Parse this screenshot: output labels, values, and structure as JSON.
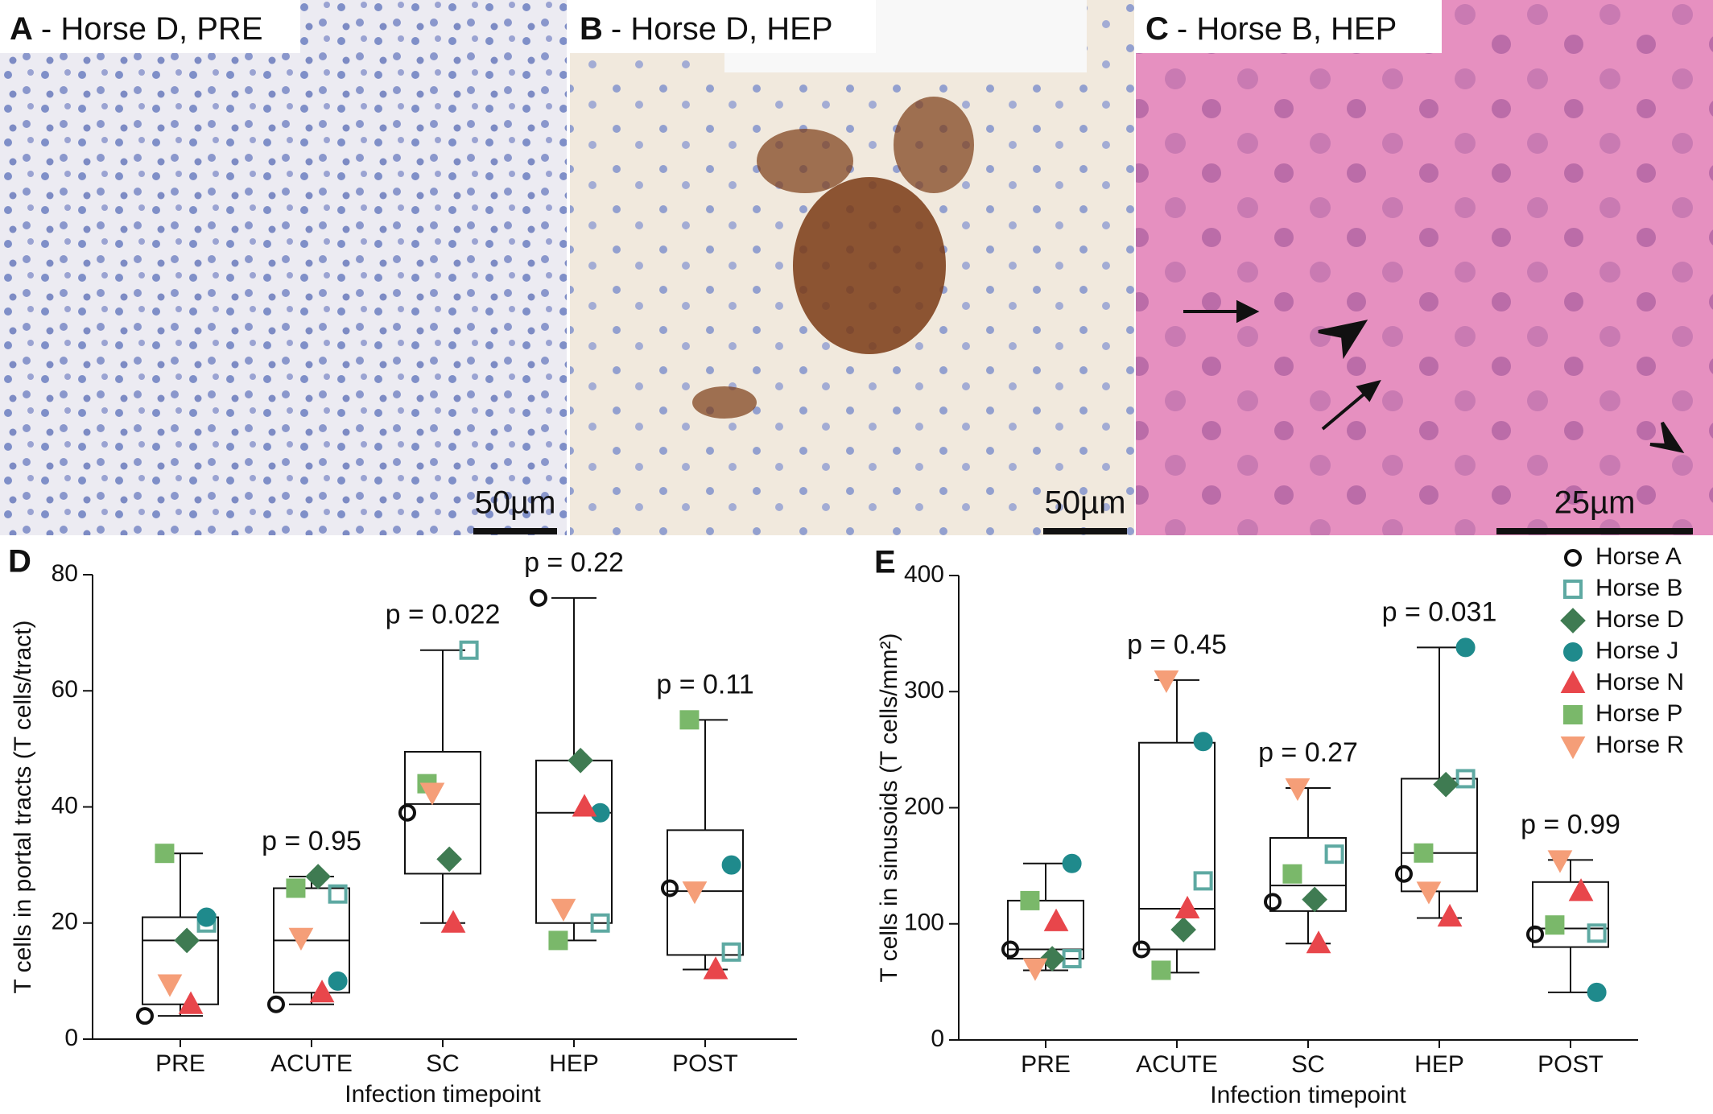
{
  "panels": [
    {
      "letter": "A",
      "title": "- Horse D, PRE",
      "scale_bar": "50µm"
    },
    {
      "letter": "B",
      "title": "- Horse D, HEP",
      "scale_bar": "50µm"
    },
    {
      "letter": "C",
      "title": "- Horse B, HEP",
      "scale_bar": "25µm"
    }
  ],
  "chart_data": [
    {
      "type": "box",
      "panel_label": "D",
      "y_label": "T cells in portal tracts (T cells/tract)",
      "x_label": "Infection timepoint",
      "categories": [
        "PRE",
        "ACUTE",
        "SC",
        "HEP",
        "POST"
      ],
      "ylim": [
        0,
        80
      ],
      "yticks": [
        0,
        20,
        40,
        60,
        80
      ],
      "legend": false,
      "boxes": [
        {
          "whislo": 4,
          "q1": 6,
          "med": 17,
          "q3": 21,
          "whishi": 32
        },
        {
          "whislo": 6,
          "q1": 8,
          "med": 17,
          "q3": 26,
          "whishi": 28
        },
        {
          "whislo": 20,
          "q1": 28.5,
          "med": 40.5,
          "q3": 49.5,
          "whishi": 67
        },
        {
          "whislo": 17,
          "q1": 20,
          "med": 39,
          "q3": 48,
          "whishi": 76
        },
        {
          "whislo": 12,
          "q1": 14.5,
          "med": 25.5,
          "q3": 36,
          "whishi": 55
        }
      ],
      "p_labels": [
        null,
        "p = 0.95",
        "p = 0.022",
        "p = 0.22",
        "p = 0.11"
      ],
      "series": [
        {
          "name": "Horse A",
          "color": "#111111",
          "marker": "circle",
          "open": true,
          "values": [
            4,
            6,
            39,
            76,
            26
          ]
        },
        {
          "name": "Horse B",
          "color": "#5ea9a2",
          "marker": "square",
          "open": true,
          "values": [
            20,
            25,
            67,
            20,
            15
          ]
        },
        {
          "name": "Horse D",
          "color": "#3f7b52",
          "marker": "diamond",
          "open": false,
          "values": [
            17,
            28,
            31,
            48,
            null
          ]
        },
        {
          "name": "Horse J",
          "color": "#1f8a8c",
          "marker": "circle",
          "open": false,
          "values": [
            21,
            10,
            null,
            39,
            30
          ]
        },
        {
          "name": "Horse N",
          "color": "#e8464b",
          "marker": "triangle",
          "open": false,
          "values": [
            6,
            8,
            20,
            40,
            12
          ]
        },
        {
          "name": "Horse P",
          "color": "#7ab86a",
          "marker": "square",
          "open": false,
          "values": [
            32,
            26,
            44,
            17,
            55
          ]
        },
        {
          "name": "Horse R",
          "color": "#f59e78",
          "marker": "triangle-down",
          "open": false,
          "values": [
            9.5,
            17.5,
            42.5,
            22.5,
            25.5
          ]
        }
      ]
    },
    {
      "type": "box",
      "panel_label": "E",
      "y_label": "T cells in sinusoids (T cells/mm²)",
      "x_label": "Infection timepoint",
      "categories": [
        "PRE",
        "ACUTE",
        "SC",
        "HEP",
        "POST"
      ],
      "ylim": [
        0,
        400
      ],
      "yticks": [
        0,
        100,
        200,
        300,
        400
      ],
      "legend": true,
      "legend_position": "top-right",
      "boxes": [
        {
          "whislo": 60,
          "q1": 70,
          "med": 78,
          "q3": 120,
          "whishi": 152
        },
        {
          "whislo": 58,
          "q1": 78,
          "med": 113,
          "q3": 256,
          "whishi": 310
        },
        {
          "whislo": 83,
          "q1": 111,
          "med": 133,
          "q3": 174,
          "whishi": 217
        },
        {
          "whislo": 105,
          "q1": 128,
          "med": 161,
          "q3": 225,
          "whishi": 338
        },
        {
          "whislo": 41,
          "q1": 80,
          "med": 96,
          "q3": 136,
          "whishi": 155
        }
      ],
      "p_labels": [
        null,
        "p = 0.45",
        "p = 0.27",
        "p = 0.031",
        "p = 0.99"
      ],
      "series": [
        {
          "name": "Horse A",
          "color": "#111111",
          "marker": "circle",
          "open": true,
          "values": [
            78,
            78,
            119,
            143,
            91
          ]
        },
        {
          "name": "Horse B",
          "color": "#5ea9a2",
          "marker": "square",
          "open": true,
          "values": [
            70,
            137,
            160,
            225,
            92
          ]
        },
        {
          "name": "Horse D",
          "color": "#3f7b52",
          "marker": "diamond",
          "open": false,
          "values": [
            70,
            95,
            121,
            220,
            null
          ]
        },
        {
          "name": "Horse J",
          "color": "#1f8a8c",
          "marker": "circle",
          "open": false,
          "values": [
            152,
            257,
            null,
            338,
            41
          ]
        },
        {
          "name": "Horse N",
          "color": "#e8464b",
          "marker": "triangle",
          "open": false,
          "values": [
            102,
            113,
            83,
            106,
            128
          ]
        },
        {
          "name": "Horse P",
          "color": "#7ab86a",
          "marker": "square",
          "open": false,
          "values": [
            120,
            60,
            143,
            161,
            99
          ]
        },
        {
          "name": "Horse R",
          "color": "#f59e78",
          "marker": "triangle-down",
          "open": false,
          "values": [
            62,
            310,
            217,
            128,
            155
          ]
        }
      ]
    }
  ]
}
